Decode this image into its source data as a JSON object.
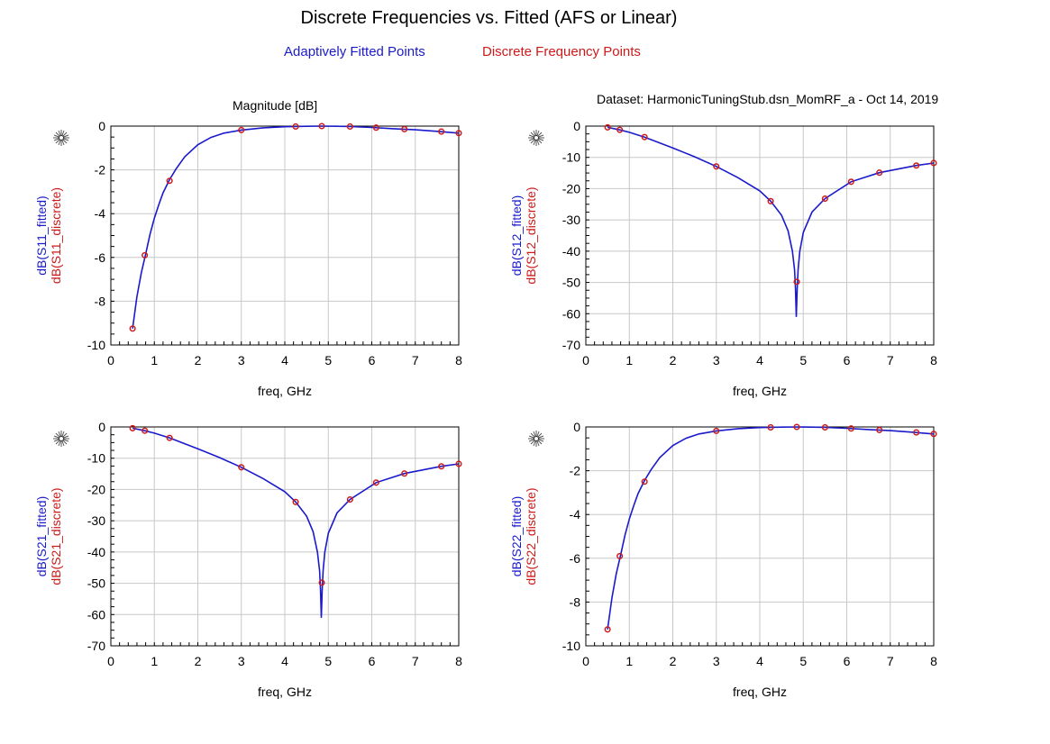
{
  "header": {
    "title": "Discrete Frequencies vs. Fitted (AFS or Linear)",
    "legend_fitted": "Adaptively Fitted Points",
    "legend_discrete": "Discrete Frequency Points",
    "subtitle": "Magnitude [dB]",
    "dataset": "Dataset: HarmonicTuningStub.dsn_MomRF_a - Oct 14, 2019"
  },
  "colors": {
    "fitted": "#1a1acc",
    "discrete": "#cc1a1a",
    "grid": "#c8c8c8"
  },
  "icons": {
    "plot_marker": "compass-star-icon"
  },
  "chart_data": [
    {
      "type": "line",
      "xlabel": "freq, GHz",
      "ylabel_fitted": "dB(S11_fitted)",
      "ylabel_discrete": "dB(S11_discrete)",
      "xlim": [
        0,
        8
      ],
      "ylim": [
        -10,
        0
      ],
      "xticks": [
        0,
        1,
        2,
        3,
        4,
        5,
        6,
        7,
        8
      ],
      "yticks": [
        0,
        -2,
        -4,
        -6,
        -8,
        -10
      ],
      "series": [
        {
          "name": "dB(S11_fitted)",
          "style": "line",
          "x": [
            0.5,
            0.6,
            0.7,
            0.8,
            0.9,
            1.0,
            1.1,
            1.2,
            1.35,
            1.5,
            1.7,
            2.0,
            2.3,
            2.6,
            3.0,
            3.5,
            4.0,
            4.25,
            4.5,
            4.85,
            5.2,
            5.5,
            6.0,
            6.5,
            7.0,
            7.5,
            8.0
          ],
          "y": [
            -9.25,
            -7.8,
            -6.7,
            -5.85,
            -4.95,
            -4.2,
            -3.6,
            -3.05,
            -2.45,
            -1.95,
            -1.4,
            -0.85,
            -0.52,
            -0.32,
            -0.18,
            -0.08,
            -0.03,
            -0.02,
            -0.01,
            0.0,
            -0.01,
            -0.02,
            -0.06,
            -0.12,
            -0.17,
            -0.24,
            -0.32
          ]
        },
        {
          "name": "dB(S11_discrete)",
          "style": "markers",
          "x": [
            0.5,
            0.78,
            1.35,
            3.0,
            4.25,
            4.85,
            5.5,
            6.1,
            6.75,
            7.6,
            8.0
          ],
          "y": [
            -9.25,
            -5.9,
            -2.5,
            -0.18,
            -0.02,
            0.0,
            -0.02,
            -0.07,
            -0.14,
            -0.25,
            -0.32
          ]
        }
      ]
    },
    {
      "type": "line",
      "xlabel": "freq, GHz",
      "ylabel_fitted": "dB(S12_fitted)",
      "ylabel_discrete": "dB(S12_discrete)",
      "xlim": [
        0,
        8
      ],
      "ylim": [
        -70,
        0
      ],
      "xticks": [
        0,
        1,
        2,
        3,
        4,
        5,
        6,
        7,
        8
      ],
      "yticks": [
        0,
        -10,
        -20,
        -30,
        -40,
        -50,
        -60,
        -70
      ],
      "series": [
        {
          "name": "dB(S12_fitted)",
          "style": "line",
          "x": [
            0.5,
            0.78,
            1.0,
            1.35,
            2.0,
            2.5,
            3.0,
            3.5,
            4.0,
            4.25,
            4.5,
            4.65,
            4.75,
            4.8,
            4.82,
            4.84,
            4.86,
            4.88,
            4.92,
            5.0,
            5.2,
            5.5,
            6.1,
            6.75,
            7.6,
            8.0
          ],
          "y": [
            -0.4,
            -1.2,
            -2.0,
            -3.5,
            -7.0,
            -9.8,
            -12.9,
            -16.5,
            -20.7,
            -24.0,
            -28.5,
            -33.5,
            -40.0,
            -46.0,
            -52.0,
            -61.0,
            -52.0,
            -46.0,
            -40.0,
            -34.0,
            -27.5,
            -23.2,
            -17.8,
            -14.9,
            -12.6,
            -11.8
          ]
        },
        {
          "name": "dB(S12_discrete)",
          "style": "markers",
          "x": [
            0.5,
            0.78,
            1.35,
            3.0,
            4.25,
            4.85,
            5.5,
            6.1,
            6.75,
            7.6,
            8.0
          ],
          "y": [
            -0.4,
            -1.2,
            -3.5,
            -12.9,
            -24.0,
            -49.8,
            -23.2,
            -17.8,
            -14.9,
            -12.6,
            -11.8
          ]
        }
      ]
    },
    {
      "type": "line",
      "xlabel": "freq, GHz",
      "ylabel_fitted": "dB(S21_fitted)",
      "ylabel_discrete": "dB(S21_discrete)",
      "xlim": [
        0,
        8
      ],
      "ylim": [
        -70,
        0
      ],
      "xticks": [
        0,
        1,
        2,
        3,
        4,
        5,
        6,
        7,
        8
      ],
      "yticks": [
        0,
        -10,
        -20,
        -30,
        -40,
        -50,
        -60,
        -70
      ],
      "series": [
        {
          "name": "dB(S21_fitted)",
          "style": "line",
          "x": [
            0.5,
            0.78,
            1.0,
            1.35,
            2.0,
            2.5,
            3.0,
            3.5,
            4.0,
            4.25,
            4.5,
            4.65,
            4.75,
            4.8,
            4.82,
            4.84,
            4.86,
            4.88,
            4.92,
            5.0,
            5.2,
            5.5,
            6.1,
            6.75,
            7.6,
            8.0
          ],
          "y": [
            -0.4,
            -1.2,
            -2.0,
            -3.5,
            -7.0,
            -9.8,
            -12.9,
            -16.5,
            -20.7,
            -24.0,
            -28.5,
            -33.5,
            -40.0,
            -46.0,
            -52.0,
            -61.0,
            -52.0,
            -46.0,
            -40.0,
            -34.0,
            -27.5,
            -23.2,
            -17.8,
            -14.9,
            -12.6,
            -11.8
          ]
        },
        {
          "name": "dB(S21_discrete)",
          "style": "markers",
          "x": [
            0.5,
            0.78,
            1.35,
            3.0,
            4.25,
            4.85,
            5.5,
            6.1,
            6.75,
            7.6,
            8.0
          ],
          "y": [
            -0.4,
            -1.2,
            -3.5,
            -12.9,
            -24.0,
            -49.8,
            -23.2,
            -17.8,
            -14.9,
            -12.6,
            -11.8
          ]
        }
      ]
    },
    {
      "type": "line",
      "xlabel": "freq, GHz",
      "ylabel_fitted": "dB(S22_fitted)",
      "ylabel_discrete": "dB(S22_discrete)",
      "xlim": [
        0,
        8
      ],
      "ylim": [
        -10,
        0
      ],
      "xticks": [
        0,
        1,
        2,
        3,
        4,
        5,
        6,
        7,
        8
      ],
      "yticks": [
        0,
        -2,
        -4,
        -6,
        -8,
        -10
      ],
      "series": [
        {
          "name": "dB(S22_fitted)",
          "style": "line",
          "x": [
            0.5,
            0.6,
            0.7,
            0.8,
            0.9,
            1.0,
            1.1,
            1.2,
            1.35,
            1.5,
            1.7,
            2.0,
            2.3,
            2.6,
            3.0,
            3.5,
            4.0,
            4.25,
            4.5,
            4.85,
            5.2,
            5.5,
            6.0,
            6.5,
            7.0,
            7.5,
            8.0
          ],
          "y": [
            -9.25,
            -7.8,
            -6.7,
            -5.85,
            -4.95,
            -4.2,
            -3.6,
            -3.05,
            -2.45,
            -1.95,
            -1.4,
            -0.85,
            -0.52,
            -0.32,
            -0.18,
            -0.08,
            -0.03,
            -0.02,
            -0.01,
            0.0,
            -0.01,
            -0.02,
            -0.06,
            -0.12,
            -0.17,
            -0.24,
            -0.32
          ]
        },
        {
          "name": "dB(S22_discrete)",
          "style": "markers",
          "x": [
            0.5,
            0.78,
            1.35,
            3.0,
            4.25,
            4.85,
            5.5,
            6.1,
            6.75,
            7.6,
            8.0
          ],
          "y": [
            -9.25,
            -5.9,
            -2.5,
            -0.18,
            -0.02,
            0.0,
            -0.02,
            -0.07,
            -0.14,
            -0.25,
            -0.32
          ]
        }
      ]
    }
  ]
}
